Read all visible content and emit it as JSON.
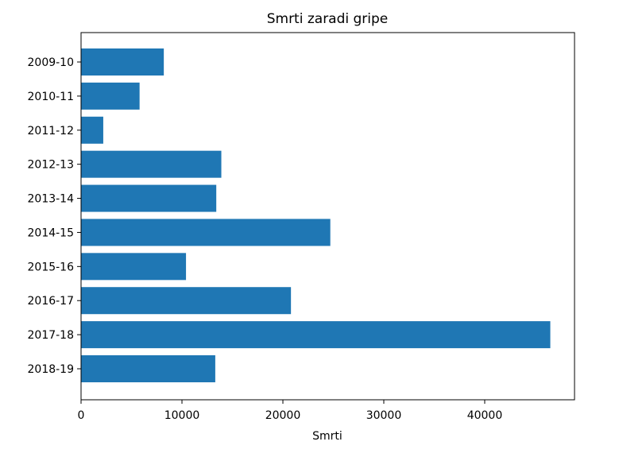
{
  "chart_data": {
    "type": "bar",
    "orientation": "horizontal",
    "title": "Smrti zaradi gripe",
    "xlabel": "Smrti",
    "ylabel": "",
    "categories": [
      "2009-10",
      "2010-11",
      "2011-12",
      "2012-13",
      "2013-14",
      "2014-15",
      "2015-16",
      "2016-17",
      "2017-18",
      "2018-19"
    ],
    "values": [
      8200,
      5800,
      2200,
      13900,
      13400,
      24700,
      10400,
      20800,
      46500,
      13300
    ],
    "xlim": [
      0,
      48900
    ],
    "xticks": [
      0,
      10000,
      20000,
      30000,
      40000
    ],
    "grid": false,
    "legend": "none",
    "colors": {
      "bar": "#1f77b4"
    }
  }
}
